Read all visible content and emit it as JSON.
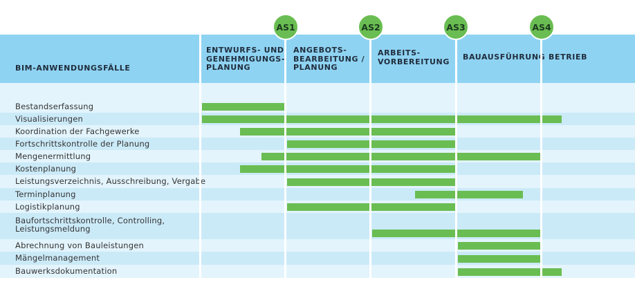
{
  "header": {
    "title": "BIM-ANWENDUNGSFÄLLE",
    "phases": [
      "ENTWURFS- UND\nGENEHMIGUNGS-\nPLANUNG",
      "ANGEBOTS-\nBEARBEITUNG /\nPLANUNG",
      "ARBEITS-\nVORBEREITUNG",
      "BAUAUSFÜHRUNG",
      "BETRIEB"
    ],
    "milestones": [
      "AS1",
      "AS2",
      "AS3",
      "AS4"
    ]
  },
  "colors": {
    "header_band": "#8fd3f2",
    "row_light": "#e3f4fc",
    "row_alt": "#cbeaf8",
    "bar": "#6abd52",
    "milestone": "#6abd52"
  },
  "chart_data": {
    "type": "gantt",
    "categories": [
      "Bestandserfassung",
      "Visualisierungen",
      "Koordination der Fachgewerke",
      "Fortschrittskontrolle der Planung",
      "Mengenermittlung",
      "Kostenplanung",
      "Leistungsverzeichnis, Ausschreibung, Vergabe",
      "Terminplanung",
      "Logistikplanung",
      "Baufortschrittskontrolle,  Controlling,\nLeistungsmeldung",
      "Abrechnung von Bauleistungen",
      "Mängelmanagement",
      "Bauwerksdokumentation"
    ],
    "phase_axis": [
      "ENTWURFS- UND GENEHMIGUNGS-PLANUNG",
      "ANGEBOTS-BEARBEITUNG / PLANUNG",
      "ARBEITS-VORBEREITUNG",
      "BAUAUSFÜHRUNG",
      "BETRIEB"
    ],
    "x_unit": "phase index (0 = start of phase 1, each phase = 1.0)",
    "ranges": [
      [
        0.0,
        1.0
      ],
      [
        0.0,
        4.25
      ],
      [
        0.45,
        3.0
      ],
      [
        1.0,
        3.0
      ],
      [
        0.7,
        4.0
      ],
      [
        0.45,
        3.0
      ],
      [
        1.0,
        3.0
      ],
      [
        2.5,
        3.8
      ],
      [
        1.0,
        3.0
      ],
      [
        2.0,
        4.0
      ],
      [
        3.0,
        4.0
      ],
      [
        3.0,
        4.0
      ],
      [
        3.0,
        4.25
      ]
    ]
  }
}
